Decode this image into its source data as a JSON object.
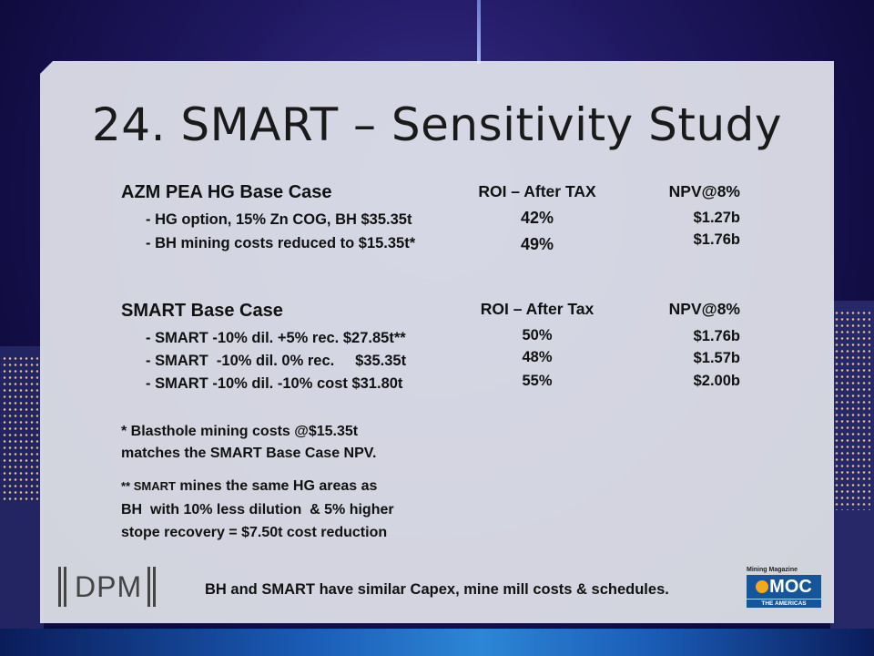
{
  "slide": {
    "title": "24. SMART – Sensitivity Study"
  },
  "section1": {
    "heading": "AZM PEA HG Base Case",
    "roi_header": "ROI – After TAX",
    "npv_header": "NPV@8%",
    "rows": [
      {
        "label": "- HG option,  15% Zn COG, BH $35.35t",
        "roi": "42%",
        "npv": "$1.27b"
      },
      {
        "label": "- BH mining costs reduced to $15.35t*",
        "roi": "49%",
        "npv": "$1.76b"
      }
    ]
  },
  "section2": {
    "heading": "SMART Base Case",
    "roi_header": "ROI – After Tax",
    "npv_header": "NPV@8%",
    "rows": [
      {
        "label": "- SMART  -10% dil. +5% rec. $27.85t**",
        "roi": "50%",
        "npv": "$1.76b"
      },
      {
        "label": "- SMART  -10% dil. 0% rec.     $35.35t",
        "roi": "48%",
        "npv": "$1.57b"
      },
      {
        "label": "- SMART  -10% dil. -10% cost $31.80t",
        "roi": "55%",
        "npv": "$2.00b"
      }
    ]
  },
  "notes": {
    "note1_line1": "* Blasthole mining costs @$15.35t",
    "note1_line2": "matches the SMART Base Case NPV.",
    "note2_prefix": "** SMART",
    "note2_line1_rest": " mines the same HG areas as",
    "note2_line2": "BH  with 10% less dilution  & 5% higher",
    "note2_line3": "stope recovery = $7.50t cost reduction"
  },
  "footer": {
    "text": "BH and SMART have similar Capex, mine mill costs & schedules."
  },
  "logos": {
    "dpm_text": "DPM",
    "omoc_magazine": "Mining Magazine",
    "omoc_main": "MOC",
    "omoc_sub": "THE AMERICAS"
  },
  "colors": {
    "panel": "#e8eaf0",
    "background": "#1f1860",
    "omoc_blue": "#15559a",
    "omoc_orange": "#f4a81c"
  }
}
